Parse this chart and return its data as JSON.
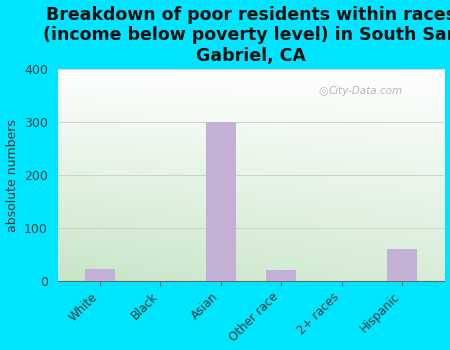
{
  "title": "Breakdown of poor residents within races\n(income below poverty level) in South San\nGabriel, CA",
  "categories": [
    "White",
    "Black",
    "Asian",
    "Other race",
    "2+ races",
    "Hispanic"
  ],
  "values": [
    22,
    0,
    300,
    20,
    0,
    60
  ],
  "bar_color": "#c4b0d5",
  "ylabel": "absolute numbers",
  "ylim": [
    0,
    400
  ],
  "yticks": [
    0,
    100,
    200,
    300,
    400
  ],
  "background_color": "#00e5ff",
  "title_fontsize": 12.5,
  "axis_label_fontsize": 9,
  "watermark": "City-Data.com",
  "grad_top_left": "#c8e6c0",
  "grad_top_right": "#f0f8f0",
  "grad_bottom_left": "#b8ddb0",
  "grad_bottom_right": "#e8f5e0"
}
